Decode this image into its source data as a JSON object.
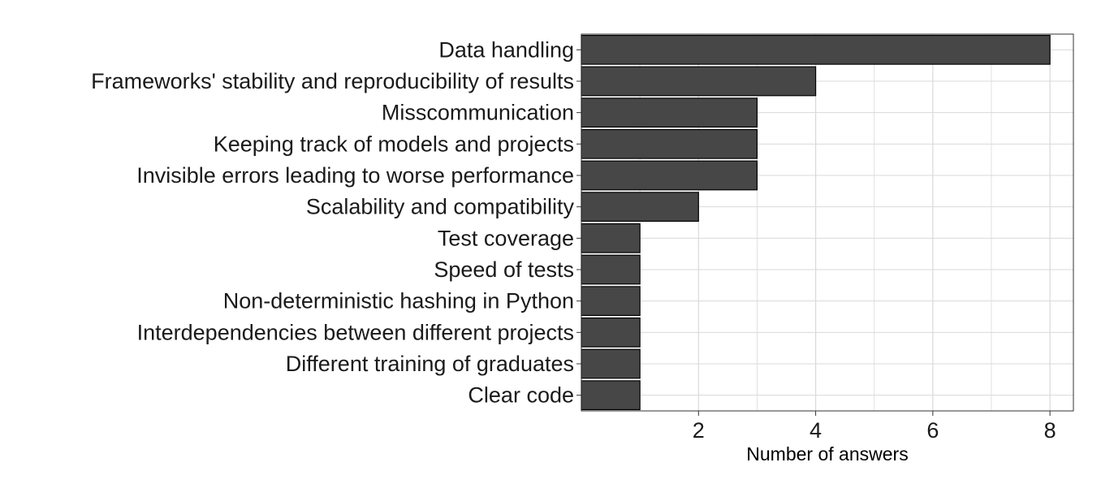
{
  "chart_data": {
    "type": "bar",
    "orientation": "horizontal",
    "categories": [
      "Data handling",
      "Frameworks' stability and reproducibility of results",
      "Misscommunication",
      "Keeping track of models and projects",
      "Invisible errors leading to worse performance",
      "Scalability and compatibility",
      "Test coverage",
      "Speed of tests",
      "Non-deterministic hashing in Python",
      "Interdependencies between different projects",
      "Different training of graduates",
      "Clear code"
    ],
    "values": [
      8,
      4,
      3,
      3,
      3,
      2,
      1,
      1,
      1,
      1,
      1,
      1
    ],
    "xlabel": "Number of answers",
    "ylabel": "",
    "xlim": [
      0,
      8.4
    ],
    "xticks": [
      2,
      4,
      6,
      8
    ],
    "grid": true,
    "colors": {
      "bar_fill": "#474747",
      "bar_stroke": "#000000",
      "grid": "#d9d9d9",
      "panel_border": "#333333"
    }
  }
}
